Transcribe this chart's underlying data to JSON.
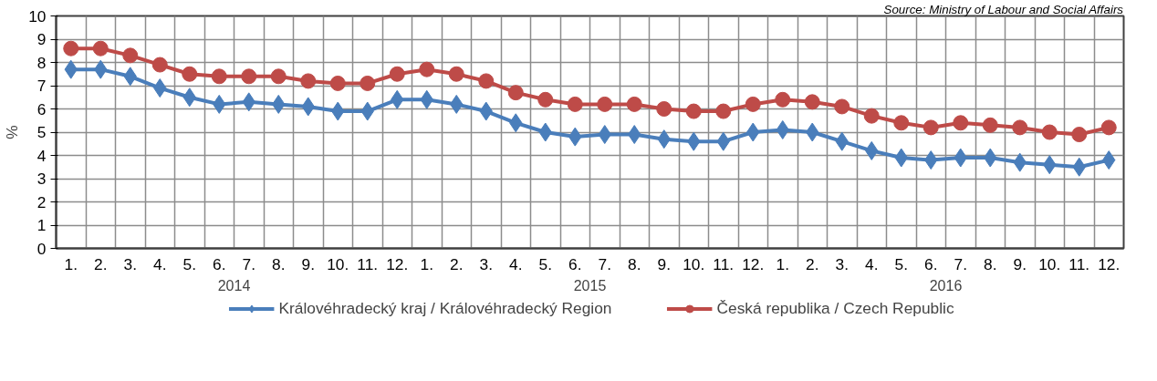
{
  "chart_data": {
    "type": "line",
    "ylabel": "%",
    "categories": [
      "1.",
      "2.",
      "3.",
      "4.",
      "5.",
      "6.",
      "7.",
      "8.",
      "9.",
      "10.",
      "11.",
      "12.",
      "1.",
      "2.",
      "3.",
      "4.",
      "5.",
      "6.",
      "7.",
      "8.",
      "9.",
      "10.",
      "11.",
      "12.",
      "1.",
      "2.",
      "3.",
      "4.",
      "5.",
      "6.",
      "7.",
      "8.",
      "9.",
      "10.",
      "11.",
      "12."
    ],
    "series": [
      {
        "name": "Královéhradecký kraj / Královéhradecký Region",
        "color": "#4a7ebb",
        "marker": "diamond",
        "values": [
          7.7,
          7.7,
          7.4,
          6.9,
          6.5,
          6.2,
          6.3,
          6.2,
          6.1,
          5.9,
          5.9,
          6.4,
          6.4,
          6.2,
          5.9,
          5.4,
          5.0,
          4.8,
          4.9,
          4.9,
          4.7,
          4.6,
          4.6,
          5.0,
          5.1,
          5.0,
          4.6,
          4.2,
          3.9,
          3.8,
          3.9,
          3.9,
          3.7,
          3.6,
          3.5,
          3.8
        ]
      },
      {
        "name": "Česká republika / Czech Republic",
        "color": "#be4b48",
        "marker": "circle",
        "values": [
          8.6,
          8.6,
          8.3,
          7.9,
          7.5,
          7.4,
          7.4,
          7.4,
          7.2,
          7.1,
          7.1,
          7.5,
          7.7,
          7.5,
          7.2,
          6.7,
          6.4,
          6.2,
          6.2,
          6.2,
          6.0,
          5.9,
          5.9,
          6.2,
          6.4,
          6.3,
          6.1,
          5.7,
          5.4,
          5.2,
          5.4,
          5.3,
          5.2,
          5.0,
          4.9,
          5.2
        ]
      }
    ],
    "ylim": [
      0,
      10
    ],
    "yticks": [
      0,
      1,
      2,
      3,
      4,
      5,
      6,
      7,
      8,
      9,
      10
    ],
    "grid": true,
    "legend": "bottom",
    "line_style": "solid",
    "annotations": [
      "Source: Ministry of Labour and Social Affairs",
      "2014",
      "2015",
      "2016"
    ]
  }
}
